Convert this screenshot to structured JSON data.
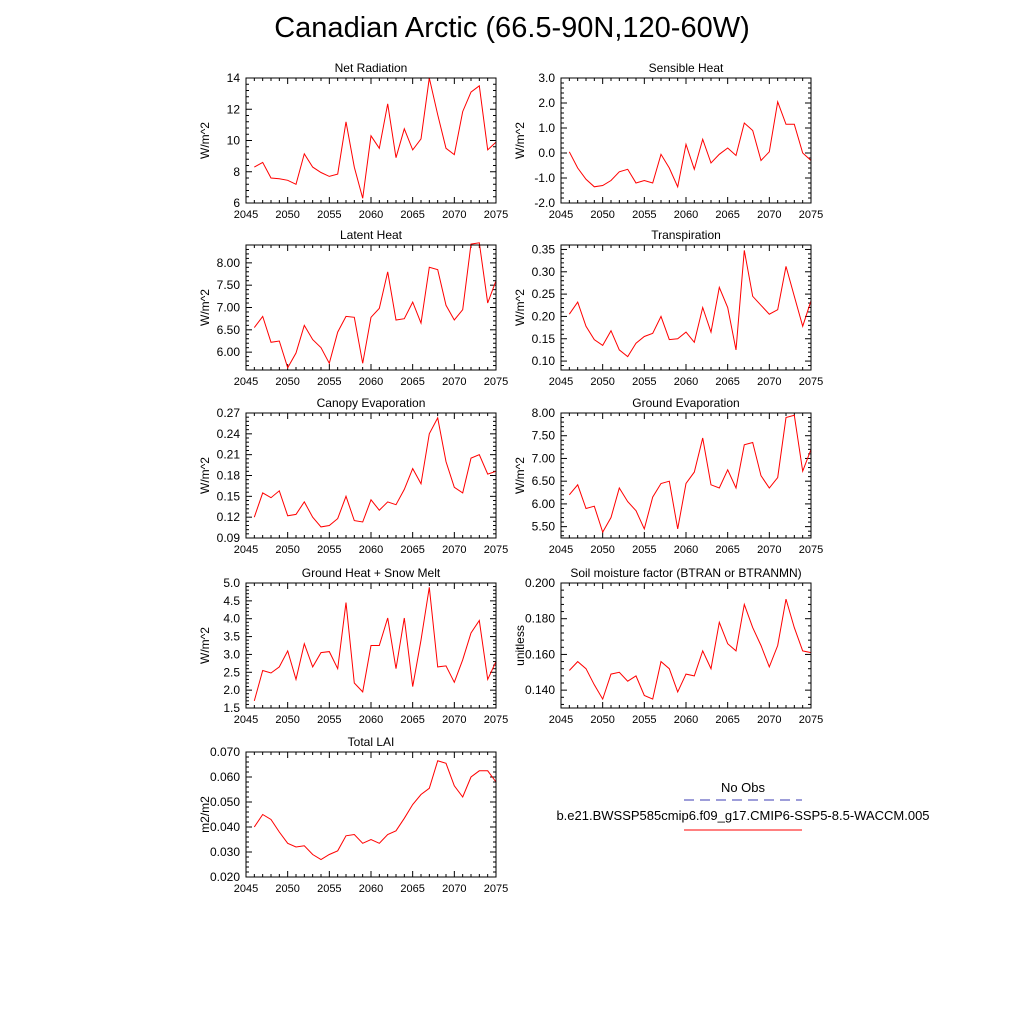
{
  "title": "Canadian Arctic (66.5-90N,120-60W)",
  "colors": {
    "model_line": "#ff0000",
    "obs_line": "#3b3bb3"
  },
  "legend": {
    "obs_label": "No Obs",
    "model_label": "b.e21.BWSSP585cmip6.f09_g17.CMIP6-SSP5-8.5-WACCM.005"
  },
  "chart_data": [
    {
      "type": "line",
      "title": "Net Radiation",
      "ylabel": "W/m^2",
      "xlim": [
        2045,
        2075
      ],
      "ylim": [
        6,
        14
      ],
      "xticks": [
        "2045",
        "2050",
        "2055",
        "2060",
        "2065",
        "2070",
        "2075"
      ],
      "yticks": [
        "6",
        "8",
        "10",
        "12",
        "14"
      ],
      "series": [
        {
          "name": "b.e21.BWSSP585cmip6.f09_g17.CMIP6-SSP5-8.5-WACCM.005",
          "x": [
            2046,
            2047,
            2048,
            2049,
            2050,
            2051,
            2052,
            2053,
            2054,
            2055,
            2056,
            2057,
            2058,
            2059,
            2060,
            2061,
            2062,
            2063,
            2064,
            2065,
            2066,
            2067,
            2068,
            2069,
            2070,
            2071,
            2072,
            2073,
            2074,
            2075
          ],
          "values": [
            8.3,
            8.6,
            7.6,
            7.55,
            7.45,
            7.2,
            9.15,
            8.3,
            7.95,
            7.7,
            7.85,
            11.2,
            8.3,
            6.3,
            10.3,
            9.5,
            12.35,
            8.9,
            10.75,
            9.4,
            10.1,
            14.0,
            11.65,
            9.5,
            9.1,
            11.85,
            13.1,
            13.5,
            9.4,
            9.9
          ]
        }
      ]
    },
    {
      "type": "line",
      "title": "Sensible Heat",
      "ylabel": "W/m^2",
      "xlim": [
        2045,
        2075
      ],
      "ylim": [
        -2,
        3
      ],
      "xticks": [
        "2045",
        "2050",
        "2055",
        "2060",
        "2065",
        "2070",
        "2075"
      ],
      "yticks": [
        "-2.0",
        "-1.0",
        "0.0",
        "1.0",
        "2.0",
        "3.0"
      ],
      "series": [
        {
          "name": "b.e21.BWSSP585cmip6.f09_g17.CMIP6-SSP5-8.5-WACCM.005",
          "x": [
            2046,
            2047,
            2048,
            2049,
            2050,
            2051,
            2052,
            2053,
            2054,
            2055,
            2056,
            2057,
            2058,
            2059,
            2060,
            2061,
            2062,
            2063,
            2064,
            2065,
            2066,
            2067,
            2068,
            2069,
            2070,
            2071,
            2072,
            2073,
            2074,
            2075
          ],
          "values": [
            0.05,
            -0.6,
            -1.05,
            -1.35,
            -1.3,
            -1.1,
            -0.75,
            -0.65,
            -1.2,
            -1.1,
            -1.2,
            -0.05,
            -0.6,
            -1.35,
            0.35,
            -0.65,
            0.55,
            -0.4,
            -0.05,
            0.2,
            -0.1,
            1.2,
            0.9,
            -0.3,
            0.05,
            2.05,
            1.15,
            1.15,
            0.0,
            -0.3
          ]
        }
      ]
    },
    {
      "type": "line",
      "title": "Latent Heat",
      "ylabel": "W/m^2",
      "xlim": [
        2045,
        2075
      ],
      "ylim": [
        5.6,
        8.4
      ],
      "xticks": [
        "2045",
        "2050",
        "2055",
        "2060",
        "2065",
        "2070",
        "2075"
      ],
      "yticks": [
        "6.00",
        "6.50",
        "7.00",
        "7.50",
        "8.00"
      ],
      "series": [
        {
          "name": "b.e21.BWSSP585cmip6.f09_g17.CMIP6-SSP5-8.5-WACCM.005",
          "x": [
            2046,
            2047,
            2048,
            2049,
            2050,
            2051,
            2052,
            2053,
            2054,
            2055,
            2056,
            2057,
            2058,
            2059,
            2060,
            2061,
            2062,
            2063,
            2064,
            2065,
            2066,
            2067,
            2068,
            2069,
            2070,
            2071,
            2072,
            2073,
            2074,
            2075
          ],
          "values": [
            6.55,
            6.8,
            6.22,
            6.25,
            5.65,
            5.98,
            6.6,
            6.28,
            6.1,
            5.75,
            6.45,
            6.8,
            6.78,
            5.75,
            6.78,
            6.98,
            7.8,
            6.72,
            6.75,
            7.12,
            6.65,
            7.9,
            7.85,
            7.05,
            6.72,
            6.95,
            8.42,
            8.45,
            7.1,
            7.6
          ]
        }
      ]
    },
    {
      "type": "line",
      "title": "Transpiration",
      "ylabel": "W/m^2",
      "xlim": [
        2045,
        2075
      ],
      "ylim": [
        0.08,
        0.36
      ],
      "xticks": [
        "2045",
        "2050",
        "2055",
        "2060",
        "2065",
        "2070",
        "2075"
      ],
      "yticks": [
        "0.10",
        "0.15",
        "0.20",
        "0.25",
        "0.30",
        "0.35"
      ],
      "series": [
        {
          "name": "b.e21.BWSSP585cmip6.f09_g17.CMIP6-SSP5-8.5-WACCM.005",
          "x": [
            2046,
            2047,
            2048,
            2049,
            2050,
            2051,
            2052,
            2053,
            2054,
            2055,
            2056,
            2057,
            2058,
            2059,
            2060,
            2061,
            2062,
            2063,
            2064,
            2065,
            2066,
            2067,
            2068,
            2069,
            2070,
            2071,
            2072,
            2073,
            2074,
            2075
          ],
          "values": [
            0.205,
            0.232,
            0.178,
            0.148,
            0.135,
            0.168,
            0.125,
            0.11,
            0.14,
            0.155,
            0.162,
            0.2,
            0.148,
            0.15,
            0.165,
            0.142,
            0.22,
            0.165,
            0.265,
            0.22,
            0.125,
            0.348,
            0.245,
            0.225,
            0.205,
            0.215,
            0.312,
            0.245,
            0.178,
            0.235
          ]
        }
      ]
    },
    {
      "type": "line",
      "title": "Canopy Evaporation",
      "ylabel": "W/m^2",
      "xlim": [
        2045,
        2075
      ],
      "ylim": [
        0.09,
        0.27
      ],
      "xticks": [
        "2045",
        "2050",
        "2055",
        "2060",
        "2065",
        "2070",
        "2075"
      ],
      "yticks": [
        "0.09",
        "0.12",
        "0.15",
        "0.18",
        "0.21",
        "0.24",
        "0.27"
      ],
      "series": [
        {
          "name": "b.e21.BWSSP585cmip6.f09_g17.CMIP6-SSP5-8.5-WACCM.005",
          "x": [
            2046,
            2047,
            2048,
            2049,
            2050,
            2051,
            2052,
            2053,
            2054,
            2055,
            2056,
            2057,
            2058,
            2059,
            2060,
            2061,
            2062,
            2063,
            2064,
            2065,
            2066,
            2067,
            2068,
            2069,
            2070,
            2071,
            2072,
            2073,
            2074,
            2075
          ],
          "values": [
            0.12,
            0.155,
            0.148,
            0.158,
            0.122,
            0.124,
            0.142,
            0.12,
            0.106,
            0.108,
            0.118,
            0.15,
            0.115,
            0.113,
            0.145,
            0.13,
            0.142,
            0.138,
            0.16,
            0.19,
            0.168,
            0.24,
            0.263,
            0.2,
            0.163,
            0.155,
            0.205,
            0.21,
            0.182,
            0.186
          ]
        }
      ]
    },
    {
      "type": "line",
      "title": "Ground Evaporation",
      "ylabel": "W/m^2",
      "xlim": [
        2045,
        2075
      ],
      "ylim": [
        5.25,
        8.0
      ],
      "xticks": [
        "2045",
        "2050",
        "2055",
        "2060",
        "2065",
        "2070",
        "2075"
      ],
      "yticks": [
        "5.50",
        "6.00",
        "6.50",
        "7.00",
        "7.50",
        "8.00"
      ],
      "series": [
        {
          "name": "b.e21.BWSSP585cmip6.f09_g17.CMIP6-SSP5-8.5-WACCM.005",
          "x": [
            2046,
            2047,
            2048,
            2049,
            2050,
            2051,
            2052,
            2053,
            2054,
            2055,
            2056,
            2057,
            2058,
            2059,
            2060,
            2061,
            2062,
            2063,
            2064,
            2065,
            2066,
            2067,
            2068,
            2069,
            2070,
            2071,
            2072,
            2073,
            2074,
            2075
          ],
          "values": [
            6.2,
            6.42,
            5.9,
            5.95,
            5.38,
            5.7,
            6.35,
            6.05,
            5.85,
            5.45,
            6.15,
            6.45,
            6.5,
            5.45,
            6.45,
            6.7,
            7.45,
            6.42,
            6.35,
            6.75,
            6.35,
            7.3,
            7.35,
            6.62,
            6.35,
            6.58,
            7.9,
            7.95,
            6.72,
            7.2
          ]
        }
      ]
    },
    {
      "type": "line",
      "title": "Ground Heat + Snow Melt",
      "ylabel": "W/m^2",
      "xlim": [
        2045,
        2075
      ],
      "ylim": [
        1.5,
        5.0
      ],
      "xticks": [
        "2045",
        "2050",
        "2055",
        "2060",
        "2065",
        "2070",
        "2075"
      ],
      "yticks": [
        "1.5",
        "2.0",
        "2.5",
        "3.0",
        "3.5",
        "4.0",
        "4.5",
        "5.0"
      ],
      "series": [
        {
          "name": "b.e21.BWSSP585cmip6.f09_g17.CMIP6-SSP5-8.5-WACCM.005",
          "x": [
            2046,
            2047,
            2048,
            2049,
            2050,
            2051,
            2052,
            2053,
            2054,
            2055,
            2056,
            2057,
            2058,
            2059,
            2060,
            2061,
            2062,
            2063,
            2064,
            2065,
            2066,
            2067,
            2068,
            2069,
            2070,
            2071,
            2072,
            2073,
            2074,
            2075
          ],
          "values": [
            1.7,
            2.55,
            2.48,
            2.65,
            3.1,
            2.3,
            3.3,
            2.65,
            3.05,
            3.08,
            2.6,
            4.45,
            2.2,
            1.95,
            3.25,
            3.25,
            4.02,
            2.6,
            4.02,
            2.1,
            3.4,
            4.88,
            2.65,
            2.68,
            2.22,
            2.85,
            3.6,
            3.95,
            2.3,
            2.8
          ]
        }
      ]
    },
    {
      "type": "line",
      "title": "Soil moisture factor (BTRAN or BTRANMN)",
      "ylabel": "unitless",
      "xlim": [
        2045,
        2075
      ],
      "ylim": [
        0.13,
        0.2
      ],
      "xticks": [
        "2045",
        "2050",
        "2055",
        "2060",
        "2065",
        "2070",
        "2075"
      ],
      "yticks": [
        "0.140",
        "0.160",
        "0.180",
        "0.200"
      ],
      "series": [
        {
          "name": "b.e21.BWSSP585cmip6.f09_g17.CMIP6-SSP5-8.5-WACCM.005",
          "x": [
            2046,
            2047,
            2048,
            2049,
            2050,
            2051,
            2052,
            2053,
            2054,
            2055,
            2056,
            2057,
            2058,
            2059,
            2060,
            2061,
            2062,
            2063,
            2064,
            2065,
            2066,
            2067,
            2068,
            2069,
            2070,
            2071,
            2072,
            2073,
            2074,
            2075
          ],
          "values": [
            0.151,
            0.156,
            0.152,
            0.143,
            0.135,
            0.149,
            0.15,
            0.145,
            0.148,
            0.137,
            0.135,
            0.156,
            0.152,
            0.139,
            0.149,
            0.148,
            0.162,
            0.152,
            0.178,
            0.166,
            0.162,
            0.188,
            0.175,
            0.165,
            0.153,
            0.165,
            0.191,
            0.175,
            0.162,
            0.161
          ]
        }
      ]
    },
    {
      "type": "line",
      "title": "Total LAI",
      "ylabel": "m2/m2",
      "xlim": [
        2045,
        2075
      ],
      "ylim": [
        0.02,
        0.07
      ],
      "xticks": [
        "2045",
        "2050",
        "2055",
        "2060",
        "2065",
        "2070",
        "2075"
      ],
      "yticks": [
        "0.020",
        "0.030",
        "0.040",
        "0.050",
        "0.060",
        "0.070"
      ],
      "series": [
        {
          "name": "b.e21.BWSSP585cmip6.f09_g17.CMIP6-SSP5-8.5-WACCM.005",
          "x": [
            2046,
            2047,
            2048,
            2049,
            2050,
            2051,
            2052,
            2053,
            2054,
            2055,
            2056,
            2057,
            2058,
            2059,
            2060,
            2061,
            2062,
            2063,
            2064,
            2065,
            2066,
            2067,
            2068,
            2069,
            2070,
            2071,
            2072,
            2073,
            2074,
            2075
          ],
          "values": [
            0.04,
            0.045,
            0.043,
            0.038,
            0.0335,
            0.032,
            0.0325,
            0.029,
            0.027,
            0.029,
            0.0305,
            0.0365,
            0.037,
            0.0335,
            0.035,
            0.0335,
            0.037,
            0.0385,
            0.0435,
            0.049,
            0.053,
            0.0555,
            0.0665,
            0.0655,
            0.0565,
            0.052,
            0.06,
            0.0625,
            0.0625,
            0.058
          ]
        }
      ]
    }
  ]
}
